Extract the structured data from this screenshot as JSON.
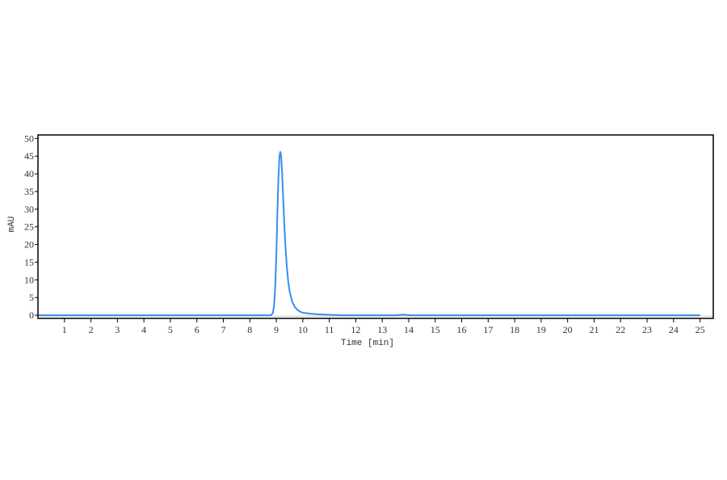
{
  "chart_data": {
    "type": "line",
    "title": "",
    "xlabel": "Time [min]",
    "ylabel": "mAU",
    "xlim": [
      0,
      25.5
    ],
    "ylim": [
      -0.9,
      51
    ],
    "xticks": [
      1,
      2,
      3,
      4,
      5,
      6,
      7,
      8,
      9,
      10,
      11,
      12,
      13,
      14,
      15,
      16,
      17,
      18,
      19,
      20,
      21,
      22,
      23,
      24,
      25
    ],
    "yticks": [
      0,
      5,
      10,
      15,
      20,
      25,
      30,
      35,
      40,
      45,
      50
    ],
    "grid": false,
    "legend": "none",
    "colors": {
      "series": "#3a8ef0",
      "baseline": "#c8c8c8",
      "frame": "#000000"
    },
    "series": [
      {
        "x": [
          0,
          8.8,
          8.87,
          8.92,
          8.96,
          9.0,
          9.04,
          9.08,
          9.12,
          9.15,
          9.18,
          9.22,
          9.26,
          9.3,
          9.35,
          9.4,
          9.45,
          9.5,
          9.6,
          9.7,
          9.8,
          9.9,
          10.0,
          10.3,
          10.6,
          11.0,
          11.5,
          13.5,
          13.8,
          14.1,
          25.0
        ],
        "y": [
          0,
          0,
          0.6,
          3,
          8,
          17,
          29,
          39,
          45,
          46.2,
          45.2,
          40,
          33,
          26,
          19,
          13.5,
          9.5,
          6.8,
          3.8,
          2.3,
          1.5,
          1.0,
          0.7,
          0.4,
          0.25,
          0.12,
          0,
          0,
          0.15,
          0,
          0
        ]
      }
    ]
  }
}
